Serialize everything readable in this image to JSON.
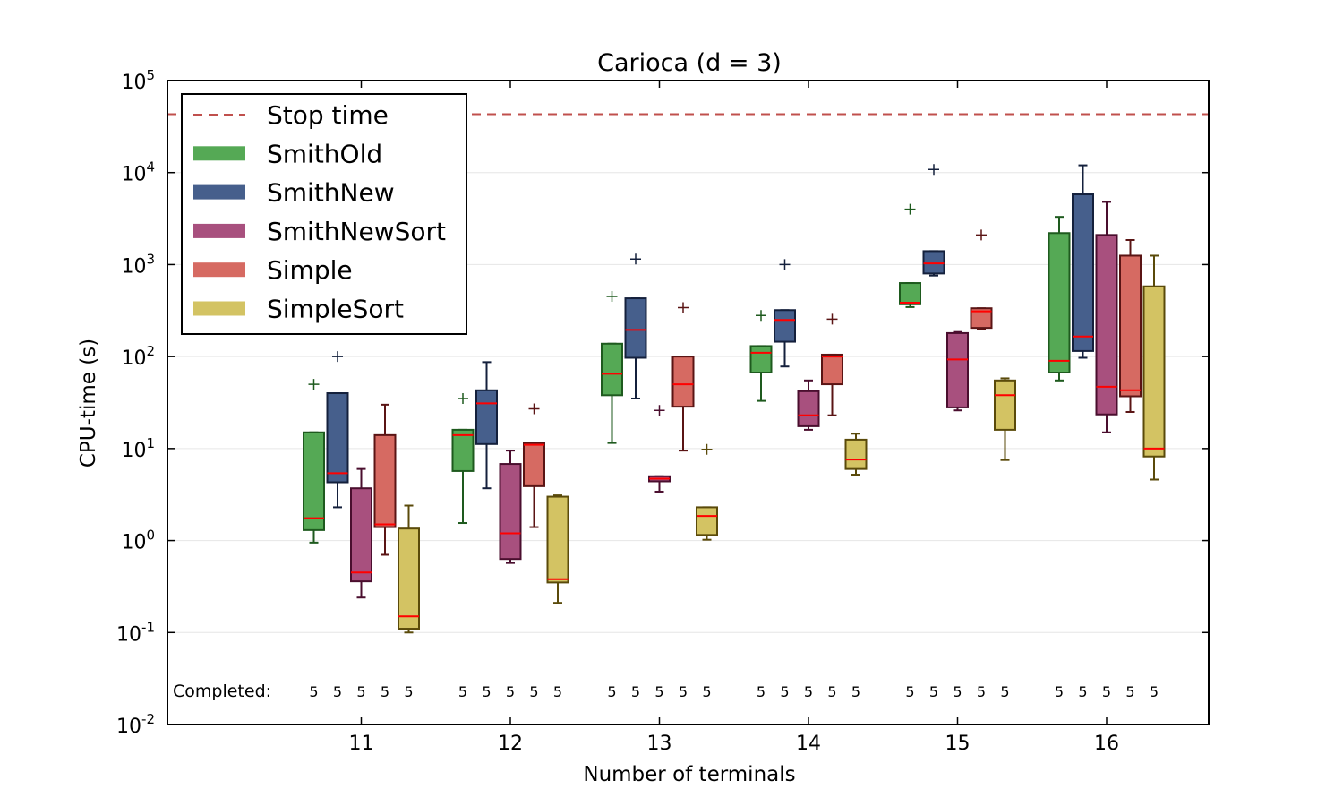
{
  "chart_data": {
    "type": "box",
    "title": "Carioca (d = 3)",
    "xlabel": "Number of terminals",
    "ylabel": "CPU-time (s)",
    "yscale": "log",
    "ylim": [
      0.01,
      100000
    ],
    "y_ticks": [
      {
        "base": "10",
        "exp": "-2",
        "value": 0.01
      },
      {
        "base": "10",
        "exp": "-1",
        "value": 0.1
      },
      {
        "base": "10",
        "exp": "0",
        "value": 1
      },
      {
        "base": "10",
        "exp": "1",
        "value": 10
      },
      {
        "base": "10",
        "exp": "2",
        "value": 100
      },
      {
        "base": "10",
        "exp": "3",
        "value": 1000
      },
      {
        "base": "10",
        "exp": "4",
        "value": 10000
      },
      {
        "base": "10",
        "exp": "5",
        "value": 100000
      }
    ],
    "grid": "horizontal",
    "legend_position": "top-left",
    "stop_time": {
      "label": "Stop time",
      "value": 43200,
      "color": "#c0504d"
    },
    "completed_label": "Completed:",
    "categories": [
      "11",
      "12",
      "13",
      "14",
      "15",
      "16"
    ],
    "series": [
      {
        "name": "SmithOld",
        "color": "#55a955",
        "edge": "#1e5a1e",
        "completed": [
          "5",
          "5",
          "5",
          "5",
          "5",
          "5"
        ],
        "boxes": [
          {
            "low": 0.95,
            "q1": 1.3,
            "median": 1.75,
            "q3": 15,
            "high": 15,
            "outliers": [
              50
            ]
          },
          {
            "low": 1.55,
            "q1": 5.7,
            "median": 14,
            "q3": 16,
            "high": 16,
            "outliers": [
              35
            ]
          },
          {
            "low": 11.5,
            "q1": 38,
            "median": 65,
            "q3": 138,
            "high": 138,
            "outliers": [
              450
            ]
          },
          {
            "low": 33,
            "q1": 67,
            "median": 110,
            "q3": 130,
            "high": 130,
            "outliers": [
              280
            ]
          },
          {
            "low": 345,
            "q1": 370,
            "median": 385,
            "q3": 630,
            "high": 630,
            "outliers": [
              4000
            ]
          },
          {
            "low": 55,
            "q1": 67,
            "median": 90,
            "q3": 2200,
            "high": 3300,
            "outliers": []
          }
        ]
      },
      {
        "name": "SmithNew",
        "color": "#465f8c",
        "edge": "#14203c",
        "completed": [
          "5",
          "5",
          "5",
          "5",
          "5",
          "5"
        ],
        "boxes": [
          {
            "low": 2.3,
            "q1": 4.3,
            "median": 5.4,
            "q3": 40,
            "high": 40,
            "outliers": [
              100
            ]
          },
          {
            "low": 3.7,
            "q1": 11.2,
            "median": 31,
            "q3": 43,
            "high": 87,
            "outliers": []
          },
          {
            "low": 35,
            "q1": 97,
            "median": 195,
            "q3": 430,
            "high": 430,
            "outliers": [
              1150
            ]
          },
          {
            "low": 78,
            "q1": 145,
            "median": 250,
            "q3": 320,
            "high": 320,
            "outliers": [
              1000
            ]
          },
          {
            "low": 760,
            "q1": 800,
            "median": 1030,
            "q3": 1400,
            "high": 1400,
            "outliers": [
              10800
            ]
          },
          {
            "low": 97,
            "q1": 115,
            "median": 165,
            "q3": 5800,
            "high": 12000,
            "outliers": []
          }
        ]
      },
      {
        "name": "SmithNewSort",
        "color": "#a8507e",
        "edge": "#4a0e2e",
        "completed": [
          "5",
          "5",
          "5",
          "5",
          "5",
          "5"
        ],
        "boxes": [
          {
            "low": 0.24,
            "q1": 0.36,
            "median": 0.45,
            "q3": 3.7,
            "high": 6,
            "outliers": []
          },
          {
            "low": 0.57,
            "q1": 0.63,
            "median": 1.2,
            "q3": 6.8,
            "high": 9.5,
            "outliers": []
          },
          {
            "low": 3.4,
            "q1": 4.4,
            "median": 4.7,
            "q3": 5,
            "high": 5,
            "outliers": [
              26
            ]
          },
          {
            "low": 16,
            "q1": 17.5,
            "median": 23,
            "q3": 42,
            "high": 55,
            "outliers": []
          },
          {
            "low": 26,
            "q1": 28,
            "median": 93,
            "q3": 180,
            "high": 185,
            "outliers": []
          },
          {
            "low": 15,
            "q1": 23.5,
            "median": 47,
            "q3": 2100,
            "high": 4800,
            "outliers": []
          }
        ]
      },
      {
        "name": "Simple",
        "color": "#d66a62",
        "edge": "#5a1414",
        "completed": [
          "5",
          "5",
          "5",
          "5",
          "5",
          "5"
        ],
        "boxes": [
          {
            "low": 0.7,
            "q1": 1.4,
            "median": 1.5,
            "q3": 14,
            "high": 30,
            "outliers": []
          },
          {
            "low": 1.4,
            "q1": 3.9,
            "median": 11,
            "q3": 11.5,
            "high": 11.5,
            "outliers": [
              27
            ]
          },
          {
            "low": 9.5,
            "q1": 28.5,
            "median": 50,
            "q3": 100,
            "high": 100,
            "outliers": [
              340
            ]
          },
          {
            "low": 23,
            "q1": 50,
            "median": 100,
            "q3": 105,
            "high": 105,
            "outliers": [
              255
            ]
          },
          {
            "low": 200,
            "q1": 205,
            "median": 310,
            "q3": 335,
            "high": 335,
            "outliers": [
              2100
            ]
          },
          {
            "low": 25,
            "q1": 37,
            "median": 43,
            "q3": 1250,
            "high": 1850,
            "outliers": []
          }
        ]
      },
      {
        "name": "SimpleSort",
        "color": "#d3c363",
        "edge": "#5a4a0a",
        "completed": [
          "5",
          "5",
          "5",
          "5",
          "5",
          "5"
        ],
        "boxes": [
          {
            "low": 0.1,
            "q1": 0.11,
            "median": 0.15,
            "q3": 1.35,
            "high": 2.4,
            "outliers": []
          },
          {
            "low": 0.21,
            "q1": 0.35,
            "median": 0.38,
            "q3": 3,
            "high": 3.1,
            "outliers": []
          },
          {
            "low": 1.02,
            "q1": 1.15,
            "median": 1.85,
            "q3": 2.3,
            "high": 2.3,
            "outliers": [
              9.8
            ]
          },
          {
            "low": 5.2,
            "q1": 6,
            "median": 7.6,
            "q3": 12.5,
            "high": 14.5,
            "outliers": []
          },
          {
            "low": 7.5,
            "q1": 16,
            "median": 38,
            "q3": 55,
            "high": 58,
            "outliers": []
          },
          {
            "low": 4.6,
            "q1": 8.2,
            "median": 10,
            "q3": 580,
            "high": 1250,
            "outliers": []
          }
        ]
      }
    ]
  }
}
